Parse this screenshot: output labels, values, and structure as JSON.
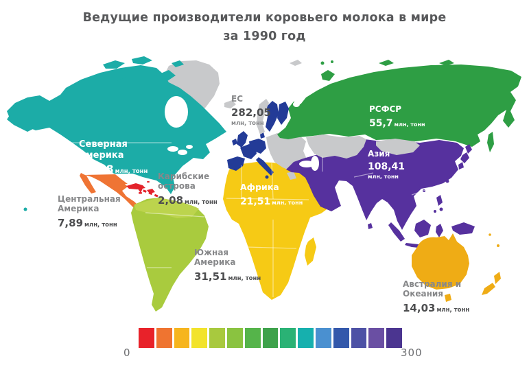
{
  "title": {
    "line1": "Ведущие производители коровьего молока в мире",
    "line2": "за 1990 год"
  },
  "chart_data": {
    "type": "heatmap",
    "subtype": "choropleth-world-map",
    "title": "Ведущие производители коровьего молока в мире за 1990 год",
    "unit": "млн, тонн",
    "value_scale": {
      "min": 0,
      "max": 300
    },
    "regions": [
      {
        "id": "north-america",
        "name": "Северная Америка",
        "value": "74,98",
        "value_num": 74.98,
        "color": "#1CACA7"
      },
      {
        "id": "central-america",
        "name": "Центральная Америка",
        "value": "7,89",
        "value_num": 7.89,
        "color": "#EF7434"
      },
      {
        "id": "caribbean",
        "name": "Карибские острова",
        "value": "2,08",
        "value_num": 2.08,
        "color": "#E3232B"
      },
      {
        "id": "south-america",
        "name": "Южная Америка",
        "value": "31,51",
        "value_num": 31.51,
        "color": "#A9CB3E"
      },
      {
        "id": "eu",
        "name": "ЕС",
        "value": "282,05",
        "value_num": 282.05,
        "color": "#233B97"
      },
      {
        "id": "rsfsr",
        "name": "РСФСР",
        "value": "55,7",
        "value_num": 55.7,
        "color": "#2E9E44"
      },
      {
        "id": "asia",
        "name": "Азия",
        "value": "108,41",
        "value_num": 108.41,
        "color": "#56319E"
      },
      {
        "id": "africa",
        "name": "Африка",
        "value": "21,51",
        "value_num": 21.51,
        "color": "#F6CA15"
      },
      {
        "id": "australia-oceania",
        "name": "Австралия и Океания",
        "value": "14,03",
        "value_num": 14.03,
        "color": "#EFAC15"
      }
    ],
    "no_data_color": "#C8C9CB",
    "legend": {
      "min": "0",
      "max": "300",
      "position": "bottom",
      "colors": [
        "#E8222A",
        "#EF7430",
        "#F6B51E",
        "#F2E32B",
        "#A8C93E",
        "#8AC340",
        "#55B44A",
        "#3EA24B",
        "#2AB275",
        "#16B0AE",
        "#4A90D0",
        "#3358AB",
        "#4D51A5",
        "#6A4FA3",
        "#4B3590"
      ]
    }
  }
}
